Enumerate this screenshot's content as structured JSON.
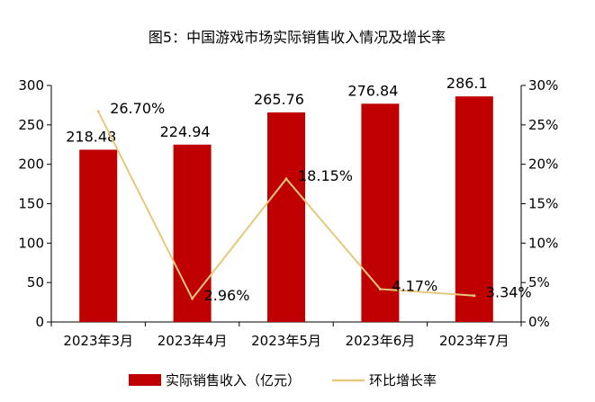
{
  "chart_data": {
    "type": "bar",
    "title": "图5：中国游戏市场实际销售收入情况及增长率",
    "categories": [
      "2023年3月",
      "2023年4月",
      "2023年5月",
      "2023年6月",
      "2023年7月"
    ],
    "series": [
      {
        "name": "实际销售收入（亿元）",
        "type": "bar",
        "axis": "left",
        "color": "#C00000",
        "values": [
          218.48,
          224.94,
          265.76,
          276.84,
          286.1
        ],
        "labels": [
          "218.48",
          "224.94",
          "265.76",
          "276.84",
          "286.1"
        ]
      },
      {
        "name": "环比增长率",
        "type": "line",
        "axis": "right",
        "color": "#E5C97B",
        "values": [
          26.7,
          2.96,
          18.15,
          4.17,
          3.34
        ],
        "labels": [
          "26.70%",
          "2.96%",
          "18.15%",
          "4.17%",
          "3.34%"
        ]
      }
    ],
    "y_left": {
      "min": 0,
      "max": 300,
      "step": 50,
      "ticks": [
        "0",
        "50",
        "100",
        "150",
        "200",
        "250",
        "300"
      ]
    },
    "y_right": {
      "min": 0,
      "max": 30,
      "step": 5,
      "ticks": [
        "0%",
        "5%",
        "10%",
        "15%",
        "20%",
        "25%",
        "30%"
      ]
    },
    "grid": false,
    "legend_position": "bottom"
  }
}
